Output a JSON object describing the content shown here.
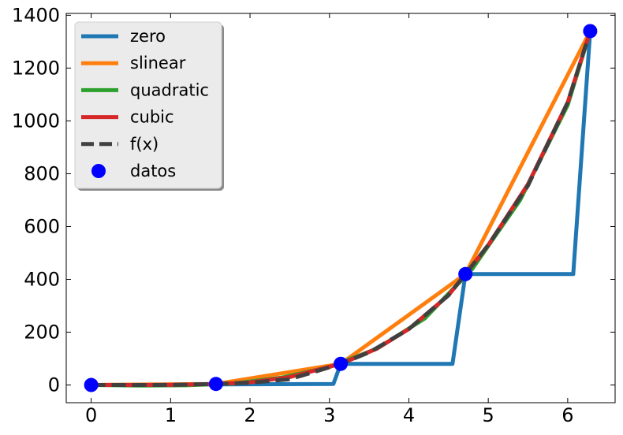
{
  "chart_data": {
    "type": "line",
    "xlim": [
      -0.314,
      6.597
    ],
    "ylim": [
      -67,
      1407
    ],
    "xticks": [
      0,
      1,
      2,
      3,
      4,
      5,
      6
    ],
    "yticks": [
      0,
      200,
      400,
      600,
      800,
      1000,
      1200,
      1400
    ],
    "grid": false,
    "legend_position": "top-left",
    "datos": {
      "name": "datos",
      "color": "#0000ff",
      "x": [
        0,
        1.571,
        3.142,
        4.712,
        6.283
      ],
      "y": [
        0,
        3.9,
        80.0,
        420.0,
        1340.0
      ]
    },
    "series": [
      {
        "name": "zero",
        "color": "#1f77b4",
        "x": [
          0,
          3.05,
          3.142,
          4.55,
          4.712,
          6.07,
          6.283
        ],
        "y": [
          0,
          3.9,
          80.0,
          80.0,
          420.0,
          420.0,
          1340.0
        ]
      },
      {
        "name": "slinear",
        "color": "#ff7f0e",
        "x": [
          0,
          1.571,
          3.142,
          4.712,
          6.283
        ],
        "y": [
          0,
          3.9,
          80.0,
          420.0,
          1340.0
        ]
      },
      {
        "name": "quadratic",
        "color": "#2ca02c",
        "x": [
          0,
          0.6,
          1.2,
          1.8,
          2.4,
          3.0,
          3.6,
          4.2,
          4.8,
          5.4,
          6.0,
          6.283
        ],
        "y": [
          0,
          -2,
          -1,
          6,
          28,
          68,
          138,
          252,
          440,
          700,
          1060,
          1340.0
        ]
      },
      {
        "name": "cubic",
        "color": "#d62728",
        "x": [
          0,
          0.5,
          1.0,
          1.571,
          2.0,
          2.5,
          3.142,
          3.6,
          4.0,
          4.5,
          4.712,
          5.0,
          5.5,
          6.0,
          6.283
        ],
        "y": [
          0,
          0.0,
          0.5,
          3.9,
          10.0,
          30.0,
          80.0,
          138.0,
          212.0,
          340.0,
          420.0,
          530.0,
          760.0,
          1070.0,
          1340.0
        ]
      },
      {
        "name": "f(x)",
        "color": "#404040",
        "dashed": true,
        "x": [
          0,
          0.5,
          1.0,
          1.571,
          2.0,
          2.5,
          3.0,
          3.142,
          3.5,
          4.0,
          4.5,
          4.712,
          5.0,
          5.5,
          6.0,
          6.283
        ],
        "y": [
          0,
          0.0,
          0.4,
          3.9,
          8.5,
          22.0,
          67.0,
          80.0,
          123.5,
          212.0,
          340.0,
          420.0,
          530.0,
          755.0,
          1070.0,
          1340.0
        ]
      }
    ]
  }
}
